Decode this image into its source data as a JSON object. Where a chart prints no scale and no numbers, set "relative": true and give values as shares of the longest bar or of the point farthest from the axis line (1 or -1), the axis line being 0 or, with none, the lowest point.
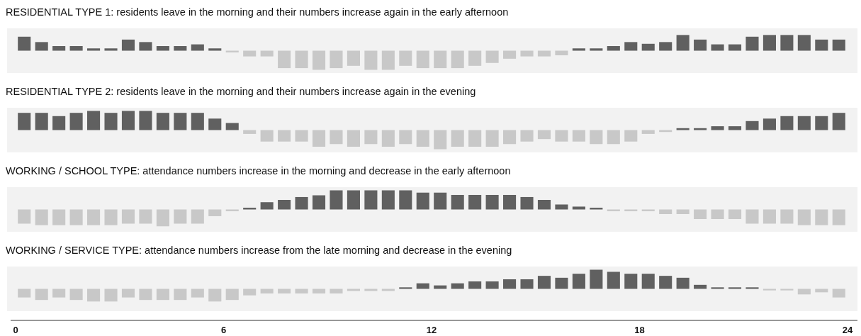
{
  "chart_data": [
    {
      "type": "bar",
      "title": "RESIDENTIAL TYPE 1: residents leave in the morning and their numbers increase again in the early afternoon",
      "relative": true,
      "xlim": [
        0,
        24
      ],
      "tick_labels": false,
      "x": [
        0.25,
        0.75,
        1.25,
        1.75,
        2.25,
        2.75,
        3.25,
        3.75,
        4.25,
        4.75,
        5.25,
        5.75,
        6.25,
        6.75,
        7.25,
        7.75,
        8.25,
        8.75,
        9.25,
        9.75,
        10.25,
        10.75,
        11.25,
        11.75,
        12.25,
        12.75,
        13.25,
        13.75,
        14.25,
        14.75,
        15.25,
        15.75,
        16.25,
        16.75,
        17.25,
        17.75,
        18.25,
        18.75,
        19.25,
        19.75,
        20.25,
        20.75,
        21.25,
        21.75,
        22.25,
        22.75,
        23.25,
        23.75
      ],
      "values": [
        0.73,
        0.45,
        0.24,
        0.24,
        0.12,
        0.12,
        0.58,
        0.45,
        0.24,
        0.24,
        0.33,
        0.12,
        -0.09,
        -0.3,
        -0.3,
        -0.91,
        -0.91,
        -1,
        -0.91,
        -0.79,
        -1,
        -1,
        -0.79,
        -0.91,
        -0.91,
        -0.91,
        -0.79,
        -0.64,
        -0.42,
        -0.3,
        -0.3,
        -0.24,
        0.12,
        0.12,
        0.24,
        0.45,
        0.36,
        0.45,
        0.82,
        0.58,
        0.33,
        0.33,
        0.73,
        0.82,
        0.82,
        0.82,
        0.58,
        0.58
      ],
      "colors": [
        "#606060",
        "#606060",
        "#606060",
        "#606060",
        "#606060",
        "#606060",
        "#606060",
        "#606060",
        "#606060",
        "#606060",
        "#606060",
        "#606060",
        "#c8c8c8",
        "#c8c8c8",
        "#c8c8c8",
        "#c8c8c8",
        "#c8c8c8",
        "#c8c8c8",
        "#c8c8c8",
        "#c8c8c8",
        "#c8c8c8",
        "#c8c8c8",
        "#c8c8c8",
        "#c8c8c8",
        "#c8c8c8",
        "#c8c8c8",
        "#c8c8c8",
        "#c8c8c8",
        "#c8c8c8",
        "#c8c8c8",
        "#c8c8c8",
        "#c8c8c8",
        "#606060",
        "#606060",
        "#606060",
        "#606060",
        "#606060",
        "#606060",
        "#606060",
        "#606060",
        "#606060",
        "#606060",
        "#606060",
        "#606060",
        "#606060",
        "#606060",
        "#606060",
        "#606060"
      ]
    },
    {
      "type": "bar",
      "title": "RESIDENTIAL TYPE 2: residents leave in the morning and their numbers increase again in the evening",
      "relative": true,
      "xlim": [
        0,
        24
      ],
      "tick_labels": false,
      "x": [
        0.25,
        0.75,
        1.25,
        1.75,
        2.25,
        2.75,
        3.25,
        3.75,
        4.25,
        4.75,
        5.25,
        5.75,
        6.25,
        6.75,
        7.25,
        7.75,
        8.25,
        8.75,
        9.25,
        9.75,
        10.25,
        10.75,
        11.25,
        11.75,
        12.25,
        12.75,
        13.25,
        13.75,
        14.25,
        14.75,
        15.25,
        15.75,
        16.25,
        16.75,
        17.25,
        17.75,
        18.25,
        18.75,
        19.25,
        19.75,
        20.25,
        20.75,
        21.25,
        21.75,
        22.25,
        22.75,
        23.25,
        23.75
      ],
      "values": [
        0.9,
        0.9,
        0.73,
        0.9,
        1,
        0.9,
        1,
        1,
        0.9,
        0.9,
        0.9,
        0.6,
        0.37,
        -0.2,
        -0.6,
        -0.6,
        -0.6,
        -0.87,
        -0.73,
        -0.87,
        -0.73,
        -0.87,
        -0.73,
        -0.87,
        -1,
        -0.87,
        -0.87,
        -0.87,
        -0.73,
        -0.6,
        -0.47,
        -0.6,
        -0.6,
        -0.73,
        -0.73,
        -0.6,
        -0.2,
        -0.1,
        0.1,
        0.1,
        0.2,
        0.2,
        0.47,
        0.6,
        0.73,
        0.73,
        0.73,
        0.9
      ],
      "colors": [
        "#606060",
        "#606060",
        "#606060",
        "#606060",
        "#606060",
        "#606060",
        "#606060",
        "#606060",
        "#606060",
        "#606060",
        "#606060",
        "#606060",
        "#606060",
        "#c8c8c8",
        "#c8c8c8",
        "#c8c8c8",
        "#c8c8c8",
        "#c8c8c8",
        "#c8c8c8",
        "#c8c8c8",
        "#c8c8c8",
        "#c8c8c8",
        "#c8c8c8",
        "#c8c8c8",
        "#c8c8c8",
        "#c8c8c8",
        "#c8c8c8",
        "#c8c8c8",
        "#c8c8c8",
        "#c8c8c8",
        "#c8c8c8",
        "#c8c8c8",
        "#c8c8c8",
        "#c8c8c8",
        "#c8c8c8",
        "#c8c8c8",
        "#c8c8c8",
        "#c8c8c8",
        "#606060",
        "#606060",
        "#606060",
        "#606060",
        "#606060",
        "#606060",
        "#606060",
        "#606060",
        "#606060",
        "#606060"
      ]
    },
    {
      "type": "bar",
      "title": "WORKING / SCHOOL TYPE: attendance numbers increase in the morning and decrease in the early afternoon",
      "relative": true,
      "xlim": [
        0,
        24
      ],
      "tick_labels": false,
      "x": [
        0.25,
        0.75,
        1.25,
        1.75,
        2.25,
        2.75,
        3.25,
        3.75,
        4.25,
        4.75,
        5.25,
        5.75,
        6.25,
        6.75,
        7.25,
        7.75,
        8.25,
        8.75,
        9.25,
        9.75,
        10.25,
        10.75,
        11.25,
        11.75,
        12.25,
        12.75,
        13.25,
        13.75,
        14.25,
        14.75,
        15.25,
        15.75,
        16.25,
        16.75,
        17.25,
        17.75,
        18.25,
        18.75,
        19.25,
        19.75,
        20.25,
        20.75,
        21.25,
        21.75,
        22.25,
        22.75,
        23.25,
        23.75
      ],
      "values": [
        -0.74,
        -0.82,
        -0.82,
        -0.82,
        -0.82,
        -0.82,
        -0.74,
        -0.74,
        -0.88,
        -0.74,
        -0.74,
        -0.35,
        -0.09,
        0.09,
        0.38,
        0.5,
        0.65,
        0.74,
        1,
        1,
        1,
        1,
        1,
        0.88,
        0.88,
        0.76,
        0.76,
        0.76,
        0.76,
        0.65,
        0.5,
        0.26,
        0.15,
        0.09,
        -0.09,
        -0.09,
        -0.09,
        -0.24,
        -0.24,
        -0.5,
        -0.5,
        -0.5,
        -0.74,
        -0.74,
        -0.74,
        -0.82,
        -0.82,
        -0.82
      ],
      "colors": [
        "#c8c8c8",
        "#c8c8c8",
        "#c8c8c8",
        "#c8c8c8",
        "#c8c8c8",
        "#c8c8c8",
        "#c8c8c8",
        "#c8c8c8",
        "#c8c8c8",
        "#c8c8c8",
        "#c8c8c8",
        "#c8c8c8",
        "#c8c8c8",
        "#606060",
        "#606060",
        "#606060",
        "#606060",
        "#606060",
        "#606060",
        "#606060",
        "#606060",
        "#606060",
        "#606060",
        "#606060",
        "#606060",
        "#606060",
        "#606060",
        "#606060",
        "#606060",
        "#606060",
        "#606060",
        "#606060",
        "#606060",
        "#606060",
        "#c8c8c8",
        "#c8c8c8",
        "#c8c8c8",
        "#c8c8c8",
        "#c8c8c8",
        "#c8c8c8",
        "#c8c8c8",
        "#c8c8c8",
        "#c8c8c8",
        "#c8c8c8",
        "#c8c8c8",
        "#c8c8c8",
        "#c8c8c8",
        "#c8c8c8"
      ]
    },
    {
      "type": "bar",
      "title": "WORKING / SERVICE TYPE: attendance numbers increase from the late morning and decrease in the evening",
      "relative": true,
      "xlim": [
        0,
        24
      ],
      "xticks": [
        0,
        6,
        12,
        18,
        24
      ],
      "tick_labels": "x",
      "x": [
        0.25,
        0.75,
        1.25,
        1.75,
        2.25,
        2.75,
        3.25,
        3.75,
        4.25,
        4.75,
        5.25,
        5.75,
        6.25,
        6.75,
        7.25,
        7.75,
        8.25,
        8.75,
        9.25,
        9.75,
        10.25,
        10.75,
        11.25,
        11.75,
        12.25,
        12.75,
        13.25,
        13.75,
        14.25,
        14.75,
        15.25,
        15.75,
        16.25,
        16.75,
        17.25,
        17.75,
        18.25,
        18.75,
        19.25,
        19.75,
        20.25,
        20.75,
        21.25,
        21.75,
        22.25,
        22.75,
        23.25,
        23.75
      ],
      "values": [
        -0.45,
        -0.58,
        -0.45,
        -0.58,
        -0.66,
        -0.66,
        -0.45,
        -0.58,
        -0.58,
        -0.58,
        -0.45,
        -0.66,
        -0.58,
        -0.34,
        -0.24,
        -0.24,
        -0.24,
        -0.24,
        -0.24,
        -0.11,
        -0.11,
        -0.11,
        0.08,
        0.29,
        0.18,
        0.29,
        0.39,
        0.39,
        0.5,
        0.5,
        0.68,
        0.58,
        0.79,
        1,
        0.89,
        0.79,
        0.79,
        0.68,
        0.58,
        0.21,
        0.08,
        0.08,
        0.08,
        -0.08,
        -0.08,
        -0.29,
        -0.18,
        -0.45
      ],
      "colors": [
        "#c8c8c8",
        "#c8c8c8",
        "#c8c8c8",
        "#c8c8c8",
        "#c8c8c8",
        "#c8c8c8",
        "#c8c8c8",
        "#c8c8c8",
        "#c8c8c8",
        "#c8c8c8",
        "#c8c8c8",
        "#c8c8c8",
        "#c8c8c8",
        "#c8c8c8",
        "#c8c8c8",
        "#c8c8c8",
        "#c8c8c8",
        "#c8c8c8",
        "#c8c8c8",
        "#c8c8c8",
        "#c8c8c8",
        "#c8c8c8",
        "#606060",
        "#606060",
        "#606060",
        "#606060",
        "#606060",
        "#606060",
        "#606060",
        "#606060",
        "#606060",
        "#606060",
        "#606060",
        "#606060",
        "#606060",
        "#606060",
        "#606060",
        "#606060",
        "#606060",
        "#606060",
        "#606060",
        "#606060",
        "#606060",
        "#c8c8c8",
        "#c8c8c8",
        "#c8c8c8",
        "#c8c8c8",
        "#c8c8c8"
      ]
    }
  ]
}
